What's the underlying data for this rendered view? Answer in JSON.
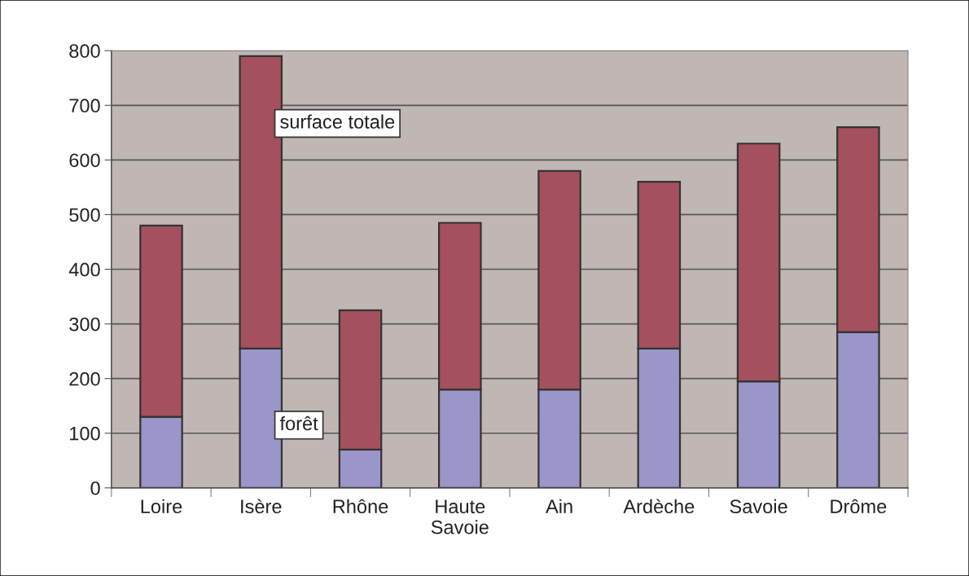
{
  "chart_data": {
    "type": "bar",
    "stacked": true,
    "categories": [
      "Loire",
      "Isère",
      "Rhône",
      "Haute\nSavoie",
      "Ain",
      "Ardèche",
      "Savoie",
      "Drôme"
    ],
    "series": [
      {
        "name": "forêt",
        "color": "#9b96c9",
        "values": [
          130,
          255,
          70,
          180,
          180,
          255,
          195,
          285
        ]
      },
      {
        "name": "surface totale",
        "color": "#a5505f",
        "values": [
          350,
          535,
          255,
          305,
          400,
          305,
          435,
          375
        ]
      }
    ],
    "ylim": [
      0,
      800
    ],
    "yticks": [
      0,
      100,
      200,
      300,
      400,
      500,
      600,
      700,
      800
    ],
    "grid": "y"
  }
}
